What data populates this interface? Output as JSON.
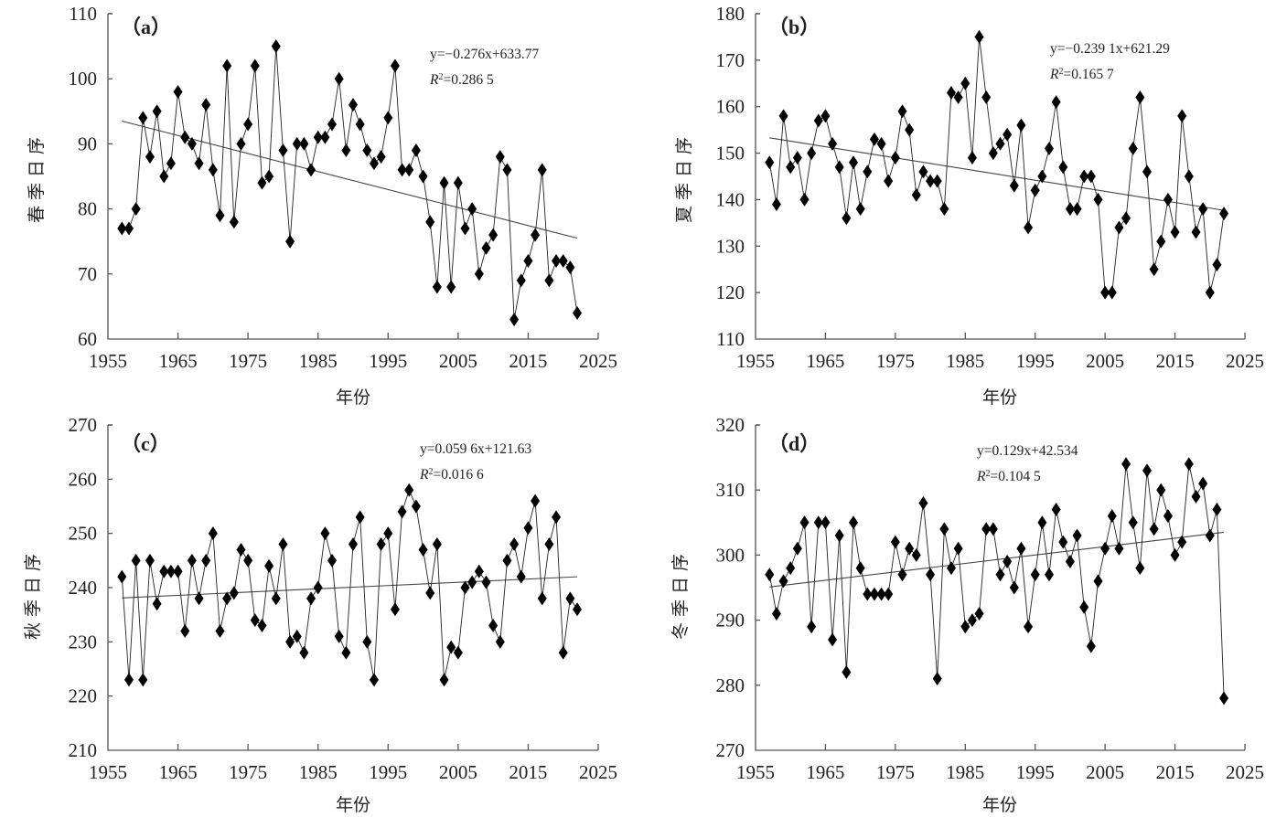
{
  "chart_data": [
    {
      "type": "line",
      "panel_label": "（a）",
      "ylabel": "春季日序",
      "xlabel": "年份",
      "xlim": [
        1955,
        2025
      ],
      "ylim": [
        60,
        110
      ],
      "xticks": [
        "1955",
        "1965",
        "1975",
        "1985",
        "1995",
        "2005",
        "2015",
        "2025"
      ],
      "yticks": [
        "60",
        "70",
        "80",
        "90",
        "100",
        "110"
      ],
      "equation": "y=−0.276x+633.77",
      "r2_prefix": "R",
      "r2_value": "=0.286 5",
      "trend": {
        "x": [
          1957,
          2022
        ],
        "y": [
          93.5,
          75.5
        ]
      },
      "x": [
        1957,
        1958,
        1959,
        1960,
        1961,
        1962,
        1963,
        1964,
        1965,
        1966,
        1967,
        1968,
        1969,
        1970,
        1971,
        1972,
        1973,
        1974,
        1975,
        1976,
        1977,
        1978,
        1979,
        1980,
        1981,
        1982,
        1983,
        1984,
        1985,
        1986,
        1987,
        1988,
        1989,
        1990,
        1991,
        1992,
        1993,
        1994,
        1995,
        1996,
        1997,
        1998,
        1999,
        2000,
        2001,
        2002,
        2003,
        2004,
        2005,
        2006,
        2007,
        2008,
        2009,
        2010,
        2011,
        2012,
        2013,
        2014,
        2015,
        2016,
        2017,
        2018,
        2019,
        2020,
        2021,
        2022
      ],
      "values": [
        77,
        77,
        80,
        94,
        88,
        95,
        85,
        87,
        98,
        91,
        90,
        87,
        96,
        86,
        79,
        102,
        78,
        90,
        93,
        102,
        84,
        85,
        105,
        89,
        75,
        90,
        90,
        86,
        91,
        91,
        93,
        100,
        89,
        96,
        93,
        89,
        87,
        88,
        94,
        102,
        86,
        86,
        89,
        85,
        78,
        68,
        84,
        68,
        84,
        77,
        80,
        70,
        74,
        76,
        88,
        86,
        63,
        69,
        72,
        76,
        86,
        69,
        72,
        72,
        71,
        64
      ]
    },
    {
      "type": "line",
      "panel_label": "（b）",
      "ylabel": "夏季日序",
      "xlabel": "年份",
      "xlim": [
        1955,
        2025
      ],
      "ylim": [
        110,
        180
      ],
      "xticks": [
        "1955",
        "1965",
        "1975",
        "1985",
        "1995",
        "2005",
        "2015",
        "2025"
      ],
      "yticks": [
        "110",
        "120",
        "130",
        "140",
        "150",
        "160",
        "170",
        "180"
      ],
      "equation": "y=−0.239 1x+621.29",
      "r2_prefix": "R",
      "r2_value": "=0.165 7",
      "trend": {
        "x": [
          1957,
          2022
        ],
        "y": [
          153.3,
          137.7
        ]
      },
      "x": [
        1957,
        1958,
        1959,
        1960,
        1961,
        1962,
        1963,
        1964,
        1965,
        1966,
        1967,
        1968,
        1969,
        1970,
        1971,
        1972,
        1973,
        1974,
        1975,
        1976,
        1977,
        1978,
        1979,
        1980,
        1981,
        1982,
        1983,
        1984,
        1985,
        1986,
        1987,
        1988,
        1989,
        1990,
        1991,
        1992,
        1993,
        1994,
        1995,
        1996,
        1997,
        1998,
        1999,
        2000,
        2001,
        2002,
        2003,
        2004,
        2005,
        2006,
        2007,
        2008,
        2009,
        2010,
        2011,
        2012,
        2013,
        2014,
        2015,
        2016,
        2017,
        2018,
        2019,
        2020,
        2021,
        2022
      ],
      "values": [
        148,
        139,
        158,
        147,
        149,
        140,
        150,
        157,
        158,
        152,
        147,
        136,
        148,
        138,
        146,
        153,
        152,
        144,
        149,
        159,
        155,
        141,
        146,
        144,
        144,
        138,
        163,
        162,
        165,
        149,
        175,
        162,
        150,
        152,
        154,
        143,
        156,
        134,
        142,
        145,
        151,
        161,
        147,
        138,
        138,
        145,
        145,
        140,
        120,
        120,
        134,
        136,
        151,
        162,
        146,
        125,
        131,
        140,
        133,
        158,
        145,
        133,
        138,
        120,
        126,
        137
      ]
    },
    {
      "type": "line",
      "panel_label": "（c）",
      "ylabel": "秋季日序",
      "xlabel": "年份",
      "xlim": [
        1955,
        2025
      ],
      "ylim": [
        210,
        270
      ],
      "xticks": [
        "1955",
        "1965",
        "1975",
        "1985",
        "1995",
        "2005",
        "2015",
        "2025"
      ],
      "yticks": [
        "210",
        "220",
        "230",
        "240",
        "250",
        "260",
        "270"
      ],
      "equation": "y=0.059 6x+121.63",
      "r2_prefix": "R",
      "r2_value": "=0.016 6",
      "trend": {
        "x": [
          1957,
          2022
        ],
        "y": [
          238.1,
          242.0
        ]
      },
      "x": [
        1957,
        1958,
        1959,
        1960,
        1961,
        1962,
        1963,
        1964,
        1965,
        1966,
        1967,
        1968,
        1969,
        1970,
        1971,
        1972,
        1973,
        1974,
        1975,
        1976,
        1977,
        1978,
        1979,
        1980,
        1981,
        1982,
        1983,
        1984,
        1985,
        1986,
        1987,
        1988,
        1989,
        1990,
        1991,
        1992,
        1993,
        1994,
        1995,
        1996,
        1997,
        1998,
        1999,
        2000,
        2001,
        2002,
        2003,
        2004,
        2005,
        2006,
        2007,
        2008,
        2009,
        2010,
        2011,
        2012,
        2013,
        2014,
        2015,
        2016,
        2017,
        2018,
        2019,
        2020,
        2021,
        2022
      ],
      "values": [
        242,
        223,
        245,
        223,
        245,
        237,
        243,
        243,
        243,
        232,
        245,
        238,
        245,
        250,
        232,
        238,
        239,
        247,
        245,
        234,
        233,
        244,
        238,
        248,
        230,
        231,
        228,
        238,
        240,
        250,
        245,
        231,
        228,
        248,
        253,
        230,
        223,
        248,
        250,
        236,
        254,
        258,
        255,
        247,
        239,
        248,
        223,
        229,
        228,
        240,
        241,
        243,
        241,
        233,
        230,
        245,
        248,
        242,
        251,
        256,
        238,
        248,
        253,
        228,
        238,
        236
      ]
    },
    {
      "type": "line",
      "panel_label": "（d）",
      "ylabel": "冬季日序",
      "xlabel": "年份",
      "xlim": [
        1955,
        2025
      ],
      "ylim": [
        270,
        320
      ],
      "xticks": [
        "1955",
        "1965",
        "1975",
        "1985",
        "1995",
        "2005",
        "2015",
        "2025"
      ],
      "yticks": [
        "270",
        "280",
        "290",
        "300",
        "310",
        "320"
      ],
      "equation": "y=0.129x+42.534",
      "r2_prefix": "R",
      "r2_value": "=0.104 5",
      "trend": {
        "x": [
          1957,
          2022
        ],
        "y": [
          295.1,
          303.5
        ]
      },
      "x": [
        1957,
        1958,
        1959,
        1960,
        1961,
        1962,
        1963,
        1964,
        1965,
        1966,
        1967,
        1968,
        1969,
        1970,
        1971,
        1972,
        1973,
        1974,
        1975,
        1976,
        1977,
        1978,
        1979,
        1980,
        1981,
        1982,
        1983,
        1984,
        1985,
        1986,
        1987,
        1988,
        1989,
        1990,
        1991,
        1992,
        1993,
        1994,
        1995,
        1996,
        1997,
        1998,
        1999,
        2000,
        2001,
        2002,
        2003,
        2004,
        2005,
        2006,
        2007,
        2008,
        2009,
        2010,
        2011,
        2012,
        2013,
        2014,
        2015,
        2016,
        2017,
        2018,
        2019,
        2020,
        2021,
        2022
      ],
      "values": [
        297,
        291,
        296,
        298,
        301,
        305,
        289,
        305,
        305,
        287,
        303,
        282,
        305,
        298,
        294,
        294,
        294,
        294,
        302,
        297,
        301,
        300,
        308,
        297,
        281,
        304,
        298,
        301,
        289,
        290,
        291,
        304,
        304,
        297,
        299,
        295,
        301,
        289,
        297,
        305,
        297,
        307,
        302,
        299,
        303,
        292,
        286,
        296,
        301,
        306,
        301,
        314,
        305,
        298,
        313,
        304,
        310,
        306,
        300,
        302,
        314,
        309,
        311,
        303,
        307,
        278
      ]
    }
  ]
}
